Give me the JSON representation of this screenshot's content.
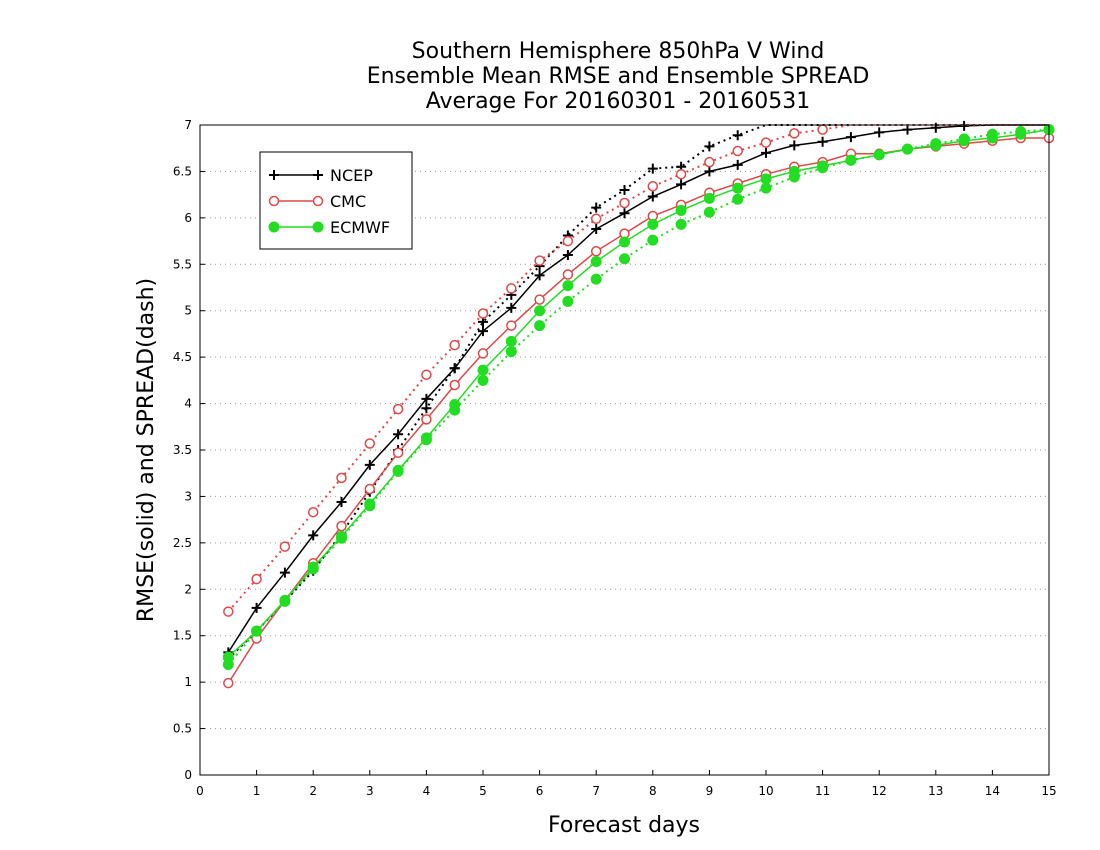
{
  "chart_data": {
    "type": "line",
    "title": [
      "Southern Hemisphere 850hPa V Wind",
      "Ensemble Mean RMSE and Ensemble SPREAD",
      "Average For 20160301 - 20160531"
    ],
    "xlabel": "Forecast days",
    "ylabel": "RMSE(solid) and SPREAD(dash)",
    "xlim": [
      0,
      15
    ],
    "ylim": [
      0,
      7
    ],
    "xticks": [
      0,
      1,
      2,
      3,
      4,
      5,
      6,
      7,
      8,
      9,
      10,
      11,
      12,
      13,
      14,
      15
    ],
    "yticks": [
      0,
      0.5,
      1,
      1.5,
      2,
      2.5,
      3,
      3.5,
      4,
      4.5,
      5,
      5.5,
      6,
      6.5,
      7
    ],
    "grid": "horizontal dotted",
    "legend_position": "top-left",
    "colors": {
      "NCEP": "#000000",
      "CMC": "#e04848",
      "ECMWF": "#22dd22"
    },
    "markers": {
      "NCEP": "plus",
      "CMC": "open-circle",
      "ECMWF": "filled-circle"
    },
    "series": [
      {
        "name": "NCEP",
        "kind": "RMSE",
        "style": "solid",
        "x": [
          0.5,
          1,
          1.5,
          2,
          2.5,
          3,
          3.5,
          4,
          4.5,
          5,
          5.5,
          6,
          6.5,
          7,
          7.5,
          8,
          8.5,
          9,
          9.5,
          10,
          10.5,
          11,
          11.5,
          12,
          12.5,
          13,
          13.5,
          14,
          14.5,
          15
        ],
        "y": [
          1.32,
          1.8,
          2.18,
          2.58,
          2.94,
          3.34,
          3.67,
          4.05,
          4.38,
          4.78,
          5.03,
          5.38,
          5.6,
          5.88,
          6.05,
          6.23,
          6.36,
          6.5,
          6.57,
          6.7,
          6.78,
          6.82,
          6.87,
          6.92,
          6.95,
          6.97,
          6.99,
          7.0,
          7.0,
          7.0
        ]
      },
      {
        "name": "NCEP",
        "kind": "SPREAD",
        "style": "dash",
        "x": [
          0.5,
          1,
          1.5,
          2,
          2.5,
          3,
          3.5,
          4,
          4.5,
          5,
          5.5,
          6,
          6.5,
          7,
          7.5,
          8,
          8.5,
          9,
          9.5,
          10,
          10.5,
          11,
          11.5,
          12,
          12.5,
          13,
          13.5,
          14,
          14.5,
          15
        ],
        "y": [
          1.25,
          1.55,
          1.87,
          2.2,
          2.6,
          3.05,
          3.5,
          3.95,
          4.38,
          4.88,
          5.17,
          5.48,
          5.81,
          6.11,
          6.3,
          6.53,
          6.55,
          6.77,
          6.89,
          7.0,
          7.0,
          7.0,
          7.0,
          7.0,
          7.0,
          7.0,
          7.0,
          7.0,
          7.0,
          7.0
        ]
      },
      {
        "name": "CMC",
        "kind": "RMSE",
        "style": "solid",
        "x": [
          0.5,
          1,
          1.5,
          2,
          2.5,
          3,
          3.5,
          4,
          4.5,
          5,
          5.5,
          6,
          6.5,
          7,
          7.5,
          8,
          8.5,
          9,
          9.5,
          10,
          10.5,
          11,
          11.5,
          12,
          12.5,
          13,
          13.5,
          14,
          14.5,
          15
        ],
        "y": [
          0.99,
          1.47,
          1.88,
          2.28,
          2.68,
          3.08,
          3.47,
          3.83,
          4.2,
          4.54,
          4.84,
          5.12,
          5.39,
          5.64,
          5.83,
          6.02,
          6.14,
          6.27,
          6.37,
          6.47,
          6.55,
          6.6,
          6.69,
          6.69,
          6.74,
          6.77,
          6.8,
          6.83,
          6.86,
          6.86
        ]
      },
      {
        "name": "CMC",
        "kind": "SPREAD",
        "style": "dash",
        "x": [
          0.5,
          1,
          1.5,
          2,
          2.5,
          3,
          3.5,
          4,
          4.5,
          5,
          5.5,
          6,
          6.5,
          7,
          7.5,
          8,
          8.5,
          9,
          9.5,
          10,
          10.5,
          11,
          11.5,
          12,
          12.5,
          13,
          13.5,
          14,
          14.5,
          15
        ],
        "y": [
          1.76,
          2.11,
          2.46,
          2.83,
          3.2,
          3.57,
          3.94,
          4.31,
          4.63,
          4.97,
          5.24,
          5.54,
          5.75,
          5.99,
          6.16,
          6.34,
          6.47,
          6.6,
          6.72,
          6.81,
          6.91,
          6.95,
          7.0,
          7.0,
          7.0,
          7.0,
          7.0,
          7.0,
          7.0,
          7.0
        ]
      },
      {
        "name": "ECMWF",
        "kind": "RMSE",
        "style": "solid",
        "x": [
          0.5,
          1,
          1.5,
          2,
          2.5,
          3,
          3.5,
          4,
          4.5,
          5,
          5.5,
          6,
          6.5,
          7,
          7.5,
          8,
          8.5,
          9,
          9.5,
          10,
          10.5,
          11,
          11.5,
          12,
          12.5,
          13,
          13.5,
          14,
          14.5,
          15
        ],
        "y": [
          1.27,
          1.55,
          1.88,
          2.24,
          2.57,
          2.92,
          3.28,
          3.63,
          3.99,
          4.36,
          4.67,
          5.0,
          5.27,
          5.53,
          5.74,
          5.93,
          6.08,
          6.21,
          6.32,
          6.42,
          6.5,
          6.56,
          6.62,
          6.68,
          6.74,
          6.78,
          6.83,
          6.86,
          6.9,
          6.95
        ]
      },
      {
        "name": "ECMWF",
        "kind": "SPREAD",
        "style": "dash",
        "x": [
          0.5,
          1,
          1.5,
          2,
          2.5,
          3,
          3.5,
          4,
          4.5,
          5,
          5.5,
          6,
          6.5,
          7,
          7.5,
          8,
          8.5,
          9,
          9.5,
          10,
          10.5,
          11,
          11.5,
          12,
          12.5,
          13,
          13.5,
          14,
          14.5,
          15
        ],
        "y": [
          1.19,
          1.55,
          1.87,
          2.22,
          2.55,
          2.9,
          3.27,
          3.61,
          3.93,
          4.25,
          4.56,
          4.84,
          5.1,
          5.34,
          5.56,
          5.76,
          5.93,
          6.06,
          6.2,
          6.32,
          6.44,
          6.54,
          6.62,
          6.68,
          6.74,
          6.8,
          6.85,
          6.9,
          6.93,
          6.95
        ]
      }
    ]
  }
}
